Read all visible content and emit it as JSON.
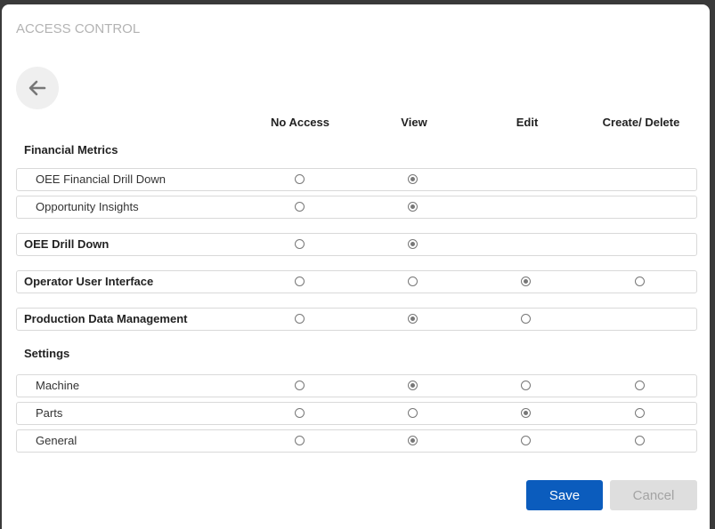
{
  "title": "ACCESS CONTROL",
  "back_icon": "arrow-left-icon",
  "columns": [
    "No Access",
    "View",
    "Edit",
    "Create/ Delete"
  ],
  "groups": {
    "financial": "Financial Metrics",
    "settings": "Settings"
  },
  "rows": [
    {
      "label": "OEE Financial Drill Down",
      "level": "sub",
      "options": [
        "unchecked",
        "checked",
        null,
        null
      ]
    },
    {
      "label": "Opportunity Insights",
      "level": "sub",
      "options": [
        "unchecked",
        "checked",
        null,
        null
      ]
    },
    {
      "label": "OEE Drill Down",
      "level": "top",
      "options": [
        "unchecked",
        "checked",
        null,
        null
      ]
    },
    {
      "label": "Operator User Interface",
      "level": "top",
      "options": [
        "unchecked",
        "unchecked",
        "checked",
        "unchecked"
      ]
    },
    {
      "label": "Production Data Management",
      "level": "top",
      "options": [
        "unchecked",
        "checked",
        "unchecked",
        null
      ]
    },
    {
      "label": "Machine",
      "level": "sub",
      "options": [
        "unchecked",
        "checked",
        "unchecked",
        "unchecked"
      ]
    },
    {
      "label": "Parts",
      "level": "sub",
      "options": [
        "unchecked",
        "unchecked",
        "checked",
        "unchecked"
      ]
    },
    {
      "label": "General",
      "level": "sub",
      "options": [
        "unchecked",
        "checked",
        "unchecked",
        "unchecked"
      ]
    }
  ],
  "buttons": {
    "save": "Save",
    "cancel": "Cancel"
  },
  "colors": {
    "primary": "#0b5cbd",
    "disabled": "#dedede"
  }
}
